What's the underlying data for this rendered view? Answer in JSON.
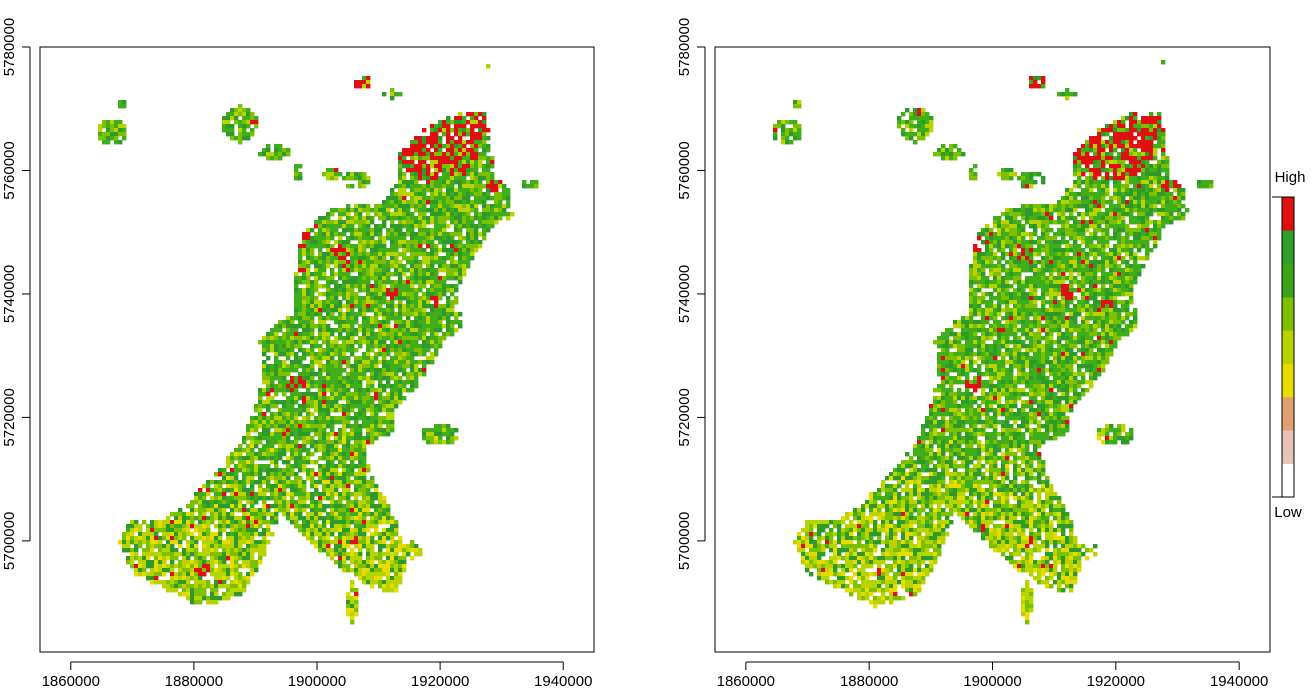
{
  "chart_data": [
    {
      "type": "map",
      "title": "",
      "xlabel": "",
      "ylabel": "",
      "xlim": [
        1855000,
        1945000
      ],
      "ylim": [
        5682000,
        5780000
      ],
      "x_ticks": [
        1860000,
        1880000,
        1900000,
        1920000,
        1940000
      ],
      "y_ticks": [
        5700000,
        5720000,
        5740000,
        5760000,
        5780000
      ],
      "x_tick_labels": [
        "1860000",
        "1880000",
        "1900000",
        "1920000",
        "1940000"
      ],
      "y_tick_labels": [
        "5700000",
        "5720000",
        "5740000",
        "5760000",
        "5780000"
      ]
    },
    {
      "type": "map",
      "title": "",
      "xlabel": "",
      "ylabel": "",
      "xlim": [
        1855000,
        1945000
      ],
      "ylim": [
        5682000,
        5780000
      ],
      "x_ticks": [
        1860000,
        1880000,
        1900000,
        1920000,
        1940000
      ],
      "y_ticks": [
        5700000,
        5720000,
        5740000,
        5760000,
        5780000
      ],
      "x_tick_labels": [
        "1860000",
        "1880000",
        "1900000",
        "1920000",
        "1940000"
      ],
      "y_tick_labels": [
        "5700000",
        "5720000",
        "5740000",
        "5760000",
        "5780000"
      ]
    }
  ],
  "legend": {
    "high_label": "High",
    "low_label": "Low",
    "colors": [
      "#ffffff",
      "#e8c4b8",
      "#e0a070",
      "#e6dc00",
      "#b8d400",
      "#7cc000",
      "#3aa51a",
      "#2ea02a",
      "#e01010"
    ]
  },
  "palette": {
    "dark_green": "#2e9a2a",
    "green": "#3fae1a",
    "light_green": "#7cc000",
    "yellow_green": "#b8d400",
    "yellow": "#e6dc00",
    "red": "#e01010"
  }
}
